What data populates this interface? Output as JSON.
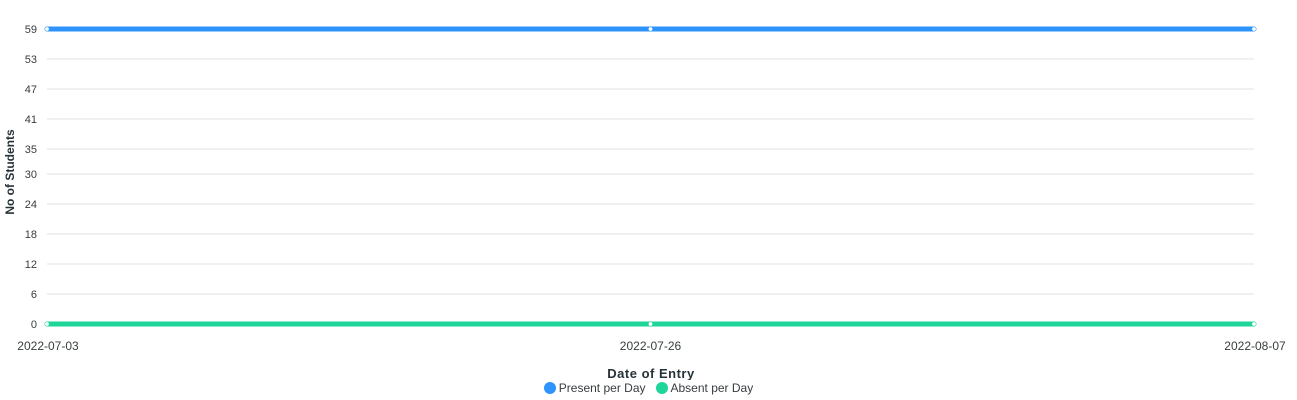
{
  "chart_data": {
    "type": "line",
    "title": "",
    "xlabel": "Date of Entry",
    "ylabel": "No of Students",
    "x_ticks": [
      "2022-07-03",
      "2022-07-26",
      "2022-08-07"
    ],
    "y_ticks": [
      0,
      6,
      12,
      18,
      24,
      30,
      35,
      41,
      47,
      53,
      59
    ],
    "ylim": [
      0,
      59
    ],
    "grid": true,
    "legend_position": "bottom-center",
    "series": [
      {
        "name": "Present per Day",
        "color": "#2e93fa",
        "values": [
          59,
          59,
          59
        ]
      },
      {
        "name": "Absent per Day",
        "color": "#1fd69a",
        "values": [
          0,
          0,
          0
        ]
      }
    ]
  }
}
